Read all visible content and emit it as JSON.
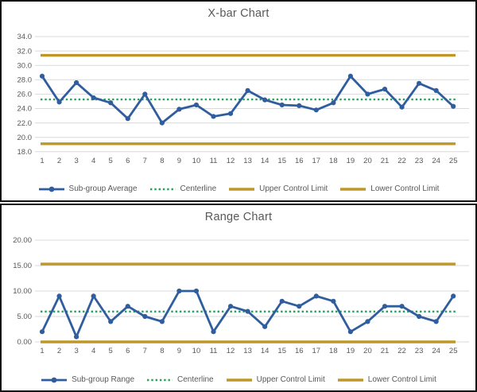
{
  "window": {
    "background": "#ffffff",
    "panel_border_color": "#141414"
  },
  "colors": {
    "series_blue": "#2F5D9E",
    "centerline_green": "#2AA05F",
    "control_limit_gold": "#BF9728",
    "gridline_gray": "#D9D9D9",
    "text_gray": "#595959"
  },
  "chart_data": [
    {
      "type": "line",
      "title": "X-bar Chart",
      "categories": [
        "1",
        "2",
        "3",
        "4",
        "5",
        "6",
        "7",
        "8",
        "9",
        "10",
        "11",
        "12",
        "13",
        "14",
        "15",
        "16",
        "17",
        "18",
        "19",
        "20",
        "21",
        "22",
        "23",
        "24",
        "25"
      ],
      "ylim": [
        18,
        34
      ],
      "yticks": [
        {
          "value": 34,
          "label": "34.0"
        },
        {
          "value": 32,
          "label": "32.0"
        },
        {
          "value": 30,
          "label": "30.0"
        },
        {
          "value": 28,
          "label": "28.0"
        },
        {
          "value": 26,
          "label": "26.0"
        },
        {
          "value": 24,
          "label": "24.0"
        },
        {
          "value": 22,
          "label": "22.0"
        },
        {
          "value": 20,
          "label": "20.0"
        },
        {
          "value": 18,
          "label": "18.0"
        }
      ],
      "grid": "horizontal",
      "legend_position": "bottom",
      "series": [
        {
          "name": "Sub-group Average",
          "style": "line-marker",
          "color": "#2F5D9E",
          "values": [
            28.5,
            24.9,
            27.6,
            25.5,
            24.8,
            22.6,
            26.0,
            22.0,
            23.9,
            24.5,
            22.9,
            23.3,
            26.5,
            25.2,
            24.5,
            24.4,
            23.8,
            24.8,
            28.5,
            26.0,
            26.7,
            24.2,
            27.5,
            26.5,
            24.3
          ]
        },
        {
          "name": "Centerline",
          "style": "dotted",
          "color": "#2AA05F",
          "value": 25.26
        },
        {
          "name": "Upper Control Limit",
          "style": "solid",
          "color": "#BF9728",
          "value": 31.4
        },
        {
          "name": "Lower Control Limit",
          "style": "solid",
          "color": "#BF9728",
          "value": 19.1
        }
      ]
    },
    {
      "type": "line",
      "title": "Range Chart",
      "categories": [
        "1",
        "2",
        "3",
        "4",
        "5",
        "6",
        "7",
        "8",
        "9",
        "10",
        "11",
        "12",
        "13",
        "14",
        "15",
        "16",
        "17",
        "18",
        "19",
        "20",
        "21",
        "22",
        "23",
        "24",
        "25"
      ],
      "ylim": [
        0,
        20
      ],
      "yticks": [
        {
          "value": 20,
          "label": "20.00"
        },
        {
          "value": 15,
          "label": "15.00"
        },
        {
          "value": 10,
          "label": "10.00"
        },
        {
          "value": 5,
          "label": "5.00"
        },
        {
          "value": 0,
          "label": "0.00"
        }
      ],
      "grid": "horizontal",
      "legend_position": "bottom",
      "series": [
        {
          "name": "Sub-group Range",
          "style": "line-marker",
          "color": "#2F5D9E",
          "values": [
            2,
            9,
            1,
            9,
            4,
            7,
            5,
            4,
            10,
            10,
            2,
            7,
            6,
            3,
            8,
            7,
            9,
            8,
            2,
            4,
            7,
            7,
            5,
            4,
            9
          ]
        },
        {
          "name": "Centerline",
          "style": "dotted",
          "color": "#2AA05F",
          "value": 5.96
        },
        {
          "name": "Upper Control Limit",
          "style": "solid",
          "color": "#BF9728",
          "value": 15.3
        },
        {
          "name": "Lower Control Limit",
          "style": "solid",
          "color": "#BF9728",
          "value": 0
        }
      ]
    }
  ]
}
